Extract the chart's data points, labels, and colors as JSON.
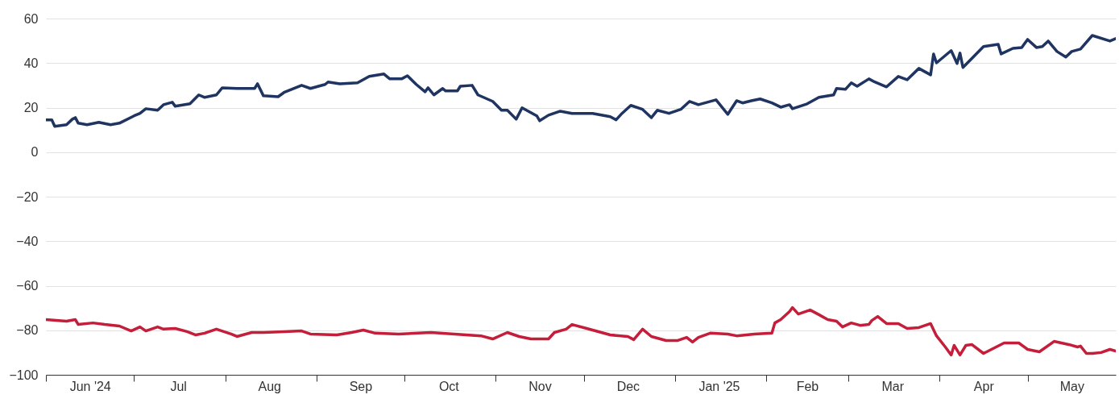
{
  "chart_data": {
    "type": "line",
    "grid": "y",
    "xlim": [
      "2024-06-01",
      "2025-05-31"
    ],
    "ylim": [
      -100,
      60
    ],
    "yticks": [
      -100,
      -80,
      -60,
      -40,
      -20,
      0,
      20,
      40,
      60
    ],
    "xticks": [
      {
        "value": "2024-06-01",
        "label": null
      },
      {
        "value": "2024-06-16",
        "label": "Jun '24"
      },
      {
        "value": "2024-07-01",
        "label": null
      },
      {
        "value": "2024-07-16",
        "label": "Jul"
      },
      {
        "value": "2024-08-01",
        "label": null
      },
      {
        "value": "2024-08-16",
        "label": "Aug"
      },
      {
        "value": "2024-09-01",
        "label": null
      },
      {
        "value": "2024-09-16",
        "label": "Sep"
      },
      {
        "value": "2024-10-01",
        "label": null
      },
      {
        "value": "2024-10-16",
        "label": "Oct"
      },
      {
        "value": "2024-11-01",
        "label": null
      },
      {
        "value": "2024-11-16",
        "label": "Nov"
      },
      {
        "value": "2024-12-01",
        "label": null
      },
      {
        "value": "2024-12-16",
        "label": "Dec"
      },
      {
        "value": "2025-01-01",
        "label": null
      },
      {
        "value": "2025-01-16",
        "label": "Jan '25"
      },
      {
        "value": "2025-02-01",
        "label": null
      },
      {
        "value": "2025-02-15",
        "label": "Feb"
      },
      {
        "value": "2025-03-01",
        "label": null
      },
      {
        "value": "2025-03-16",
        "label": "Mar"
      },
      {
        "value": "2025-04-01",
        "label": null
      },
      {
        "value": "2025-04-16",
        "label": "Apr"
      },
      {
        "value": "2025-05-01",
        "label": null
      },
      {
        "value": "2025-05-16",
        "label": "May"
      }
    ],
    "series": [
      {
        "color": "#1f3461",
        "x": [
          "2024-06-01",
          "2024-06-03",
          "2024-06-04",
          "2024-06-08",
          "2024-06-10",
          "2024-06-11",
          "2024-06-12",
          "2024-06-15",
          "2024-06-19",
          "2024-06-23",
          "2024-06-26",
          "2024-07-01",
          "2024-07-03",
          "2024-07-05",
          "2024-07-09",
          "2024-07-11",
          "2024-07-14",
          "2024-07-15",
          "2024-07-20",
          "2024-07-23",
          "2024-07-25",
          "2024-07-29",
          "2024-07-31",
          "2024-08-05",
          "2024-08-11",
          "2024-08-12",
          "2024-08-14",
          "2024-08-19",
          "2024-08-21",
          "2024-08-27",
          "2024-08-30",
          "2024-09-04",
          "2024-09-05",
          "2024-09-09",
          "2024-09-15",
          "2024-09-19",
          "2024-09-24",
          "2024-09-26",
          "2024-09-30",
          "2024-10-02",
          "2024-10-05",
          "2024-10-08",
          "2024-10-09",
          "2024-10-11",
          "2024-10-14",
          "2024-10-15",
          "2024-10-19",
          "2024-10-20",
          "2024-10-24",
          "2024-10-26",
          "2024-10-31",
          "2024-11-03",
          "2024-11-05",
          "2024-11-08",
          "2024-11-10",
          "2024-11-15",
          "2024-11-16",
          "2024-11-19",
          "2024-11-23",
          "2024-11-27",
          "2024-12-04",
          "2024-12-10",
          "2024-12-12",
          "2024-12-14",
          "2024-12-17",
          "2024-12-21",
          "2024-12-24",
          "2024-12-26",
          "2024-12-30",
          "2025-01-03",
          "2025-01-06",
          "2025-01-09",
          "2025-01-12",
          "2025-01-15",
          "2025-01-19",
          "2025-01-22",
          "2025-01-24",
          "2025-01-27",
          "2025-01-30",
          "2025-02-03",
          "2025-02-06",
          "2025-02-09",
          "2025-02-10",
          "2025-02-15",
          "2025-02-19",
          "2025-02-24",
          "2025-02-25",
          "2025-02-28",
          "2025-03-02",
          "2025-03-04",
          "2025-03-08",
          "2025-03-10",
          "2025-03-14",
          "2025-03-18",
          "2025-03-21",
          "2025-03-25",
          "2025-03-29",
          "2025-03-30",
          "2025-03-31",
          "2025-04-05",
          "2025-04-07",
          "2025-04-08",
          "2025-04-09",
          "2025-04-16",
          "2025-04-21",
          "2025-04-22",
          "2025-04-26",
          "2025-04-29",
          "2025-05-01",
          "2025-05-04",
          "2025-05-06",
          "2025-05-08",
          "2025-05-11",
          "2025-05-14",
          "2025-05-16",
          "2025-05-19",
          "2025-05-23",
          "2025-05-29",
          "2025-05-31"
        ],
        "values": [
          14.5,
          14.5,
          11.6,
          12.3,
          14.8,
          15.5,
          13,
          12.3,
          13.4,
          12.3,
          13,
          16.3,
          17.4,
          19.5,
          18.8,
          21.3,
          22.4,
          20.6,
          21.7,
          25.7,
          24.6,
          25.7,
          28.9,
          28.6,
          28.6,
          30.7,
          25.3,
          24.9,
          26.8,
          30,
          28.6,
          30.4,
          31.5,
          30.7,
          31.1,
          34,
          35.1,
          32.9,
          32.9,
          34.3,
          30.4,
          27.1,
          28.9,
          25.7,
          28.6,
          27.5,
          27.5,
          29.6,
          30,
          25.7,
          22.8,
          18.8,
          18.8,
          14.8,
          19.9,
          16.3,
          14.1,
          16.6,
          18.4,
          17.4,
          17.4,
          15.9,
          14.5,
          17.4,
          21,
          19.2,
          15.5,
          18.8,
          17.4,
          19.2,
          22.8,
          21.3,
          22.4,
          23.5,
          17,
          23.1,
          22.1,
          23.1,
          23.9,
          22.1,
          20.2,
          21.3,
          19.5,
          21.7,
          24.6,
          25.7,
          28.6,
          28.2,
          31.1,
          29.6,
          32.9,
          31.5,
          29.3,
          34,
          32.5,
          37.6,
          34.7,
          44.1,
          40.1,
          45.6,
          39.8,
          44.5,
          38,
          47.4,
          48.4,
          44.1,
          46.6,
          47,
          50.6,
          47,
          47.4,
          49.9,
          45.2,
          42.7,
          45.2,
          46.3,
          52.4,
          49.9,
          51
        ]
      },
      {
        "color": "#c41e3a",
        "x": [
          "2024-06-01",
          "2024-06-08",
          "2024-06-11",
          "2024-06-12",
          "2024-06-17",
          "2024-06-21",
          "2024-06-26",
          "2024-06-30",
          "2024-07-03",
          "2024-07-05",
          "2024-07-09",
          "2024-07-11",
          "2024-07-15",
          "2024-07-19",
          "2024-07-22",
          "2024-07-25",
          "2024-07-29",
          "2024-08-03",
          "2024-08-05",
          "2024-08-10",
          "2024-08-14",
          "2024-08-21",
          "2024-08-27",
          "2024-08-30",
          "2024-09-08",
          "2024-09-13",
          "2024-09-17",
          "2024-09-21",
          "2024-09-29",
          "2024-10-10",
          "2024-10-18",
          "2024-10-27",
          "2024-10-31",
          "2024-11-05",
          "2024-11-09",
          "2024-11-13",
          "2024-11-19",
          "2024-11-21",
          "2024-11-25",
          "2024-11-27",
          "2024-12-02",
          "2024-12-10",
          "2024-12-16",
          "2024-12-18",
          "2024-12-21",
          "2024-12-24",
          "2024-12-29",
          "2025-01-02",
          "2025-01-05",
          "2025-01-07",
          "2025-01-09",
          "2025-01-13",
          "2025-01-19",
          "2025-01-22",
          "2025-01-28",
          "2025-02-03",
          "2025-02-04",
          "2025-02-06",
          "2025-02-09",
          "2025-02-10",
          "2025-02-12",
          "2025-02-16",
          "2025-02-19",
          "2025-02-22",
          "2025-02-25",
          "2025-02-27",
          "2025-03-02",
          "2025-03-05",
          "2025-03-08",
          "2025-03-09",
          "2025-03-11",
          "2025-03-14",
          "2025-03-18",
          "2025-03-21",
          "2025-03-25",
          "2025-03-29",
          "2025-03-31",
          "2025-04-03",
          "2025-04-05",
          "2025-04-06",
          "2025-04-08",
          "2025-04-10",
          "2025-04-12",
          "2025-04-16",
          "2025-04-23",
          "2025-04-28",
          "2025-05-01",
          "2025-05-05",
          "2025-05-10",
          "2025-05-15",
          "2025-05-18",
          "2025-05-19",
          "2025-05-21",
          "2025-05-23",
          "2025-05-26",
          "2025-05-29",
          "2025-05-31"
        ],
        "values": [
          -75.2,
          -75.9,
          -75.2,
          -77.4,
          -76.7,
          -77.4,
          -78.1,
          -80.3,
          -78.5,
          -80.3,
          -78.5,
          -79.5,
          -79.2,
          -80.6,
          -82.1,
          -81.3,
          -79.5,
          -81.7,
          -82.8,
          -81,
          -81,
          -80.6,
          -80.3,
          -81.7,
          -82.1,
          -81,
          -79.9,
          -81.3,
          -81.7,
          -81,
          -81.7,
          -82.5,
          -83.9,
          -81,
          -82.8,
          -83.9,
          -83.9,
          -81,
          -79.5,
          -77.4,
          -79.2,
          -82.1,
          -82.8,
          -84.2,
          -79.5,
          -82.8,
          -84.6,
          -84.6,
          -83.2,
          -85.3,
          -83.2,
          -81.3,
          -81.7,
          -82.5,
          -81.7,
          -81.3,
          -76.7,
          -75.2,
          -71.6,
          -69.8,
          -72.7,
          -70.9,
          -73,
          -75.2,
          -75.9,
          -78.5,
          -76.7,
          -77.8,
          -77.4,
          -75.6,
          -73.8,
          -77,
          -77,
          -79.2,
          -78.8,
          -77,
          -82.5,
          -87.5,
          -91.1,
          -86.8,
          -91.1,
          -86.8,
          -86.4,
          -90.4,
          -85.7,
          -85.7,
          -88.6,
          -89.7,
          -85,
          -86.4,
          -87.5,
          -87.1,
          -90.4,
          -90.4,
          -90,
          -88.6,
          -89.3
        ]
      }
    ]
  }
}
